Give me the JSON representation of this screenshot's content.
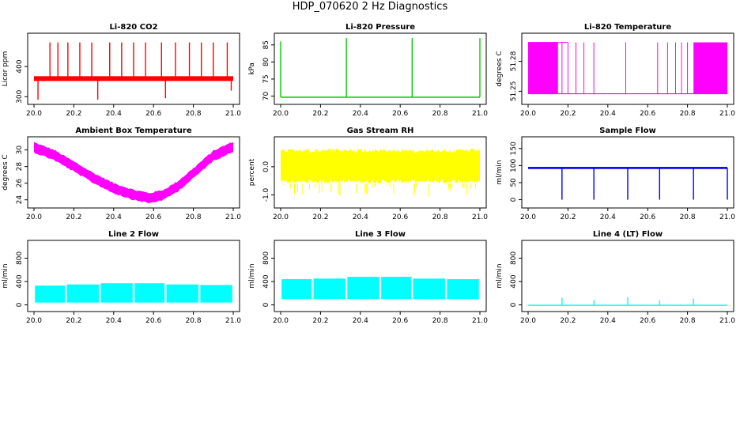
{
  "figure": {
    "title": "HDP_070620  2 Hz Diagnostics"
  },
  "chart_data": [
    {
      "id": "co2",
      "type": "line",
      "title": "Li-820 CO2",
      "ylabel": "Licor ppm",
      "xlim": [
        20.0,
        21.0
      ],
      "ylim": [
        285,
        500
      ],
      "xticks": [
        "20.0",
        "20.2",
        "20.4",
        "20.6",
        "20.8",
        "21.0"
      ],
      "yticks": [
        {
          "v": 300,
          "label": "300"
        },
        {
          "v": 400,
          "label": "400"
        }
      ],
      "color": "#ff0000",
      "signal": "spiky",
      "baseline": 360,
      "band": 8,
      "spikes": [
        {
          "x": 20.02,
          "y": 290
        },
        {
          "x": 20.08,
          "y": 480
        },
        {
          "x": 20.12,
          "y": 480
        },
        {
          "x": 20.17,
          "y": 480
        },
        {
          "x": 20.23,
          "y": 480
        },
        {
          "x": 20.29,
          "y": 480
        },
        {
          "x": 20.32,
          "y": 290
        },
        {
          "x": 20.38,
          "y": 480
        },
        {
          "x": 20.44,
          "y": 480
        },
        {
          "x": 20.5,
          "y": 480
        },
        {
          "x": 20.56,
          "y": 480
        },
        {
          "x": 20.64,
          "y": 480
        },
        {
          "x": 20.66,
          "y": 295
        },
        {
          "x": 20.71,
          "y": 480
        },
        {
          "x": 20.78,
          "y": 480
        },
        {
          "x": 20.84,
          "y": 480
        },
        {
          "x": 20.9,
          "y": 480
        },
        {
          "x": 20.97,
          "y": 480
        },
        {
          "x": 20.99,
          "y": 320
        }
      ]
    },
    {
      "id": "pressure",
      "type": "line",
      "title": "Li-820 Pressure",
      "ylabel": "kPa",
      "xlim": [
        20.0,
        21.0
      ],
      "ylim": [
        68.5,
        87.5
      ],
      "xticks": [
        "20.0",
        "20.2",
        "20.4",
        "20.6",
        "20.8",
        "21.0"
      ],
      "yticks": [
        {
          "v": 70,
          "label": "70"
        },
        {
          "v": 75,
          "label": "75"
        },
        {
          "v": 80,
          "label": "80"
        },
        {
          "v": 85,
          "label": "85"
        }
      ],
      "color": "#00cc00",
      "signal": "spiky",
      "baseline": 69.7,
      "band": 0.15,
      "spikes": [
        {
          "x": 20.0,
          "y": 86
        },
        {
          "x": 20.33,
          "y": 87
        },
        {
          "x": 20.66,
          "y": 87
        },
        {
          "x": 21.0,
          "y": 87
        }
      ]
    },
    {
      "id": "temperature",
      "type": "line",
      "title": "Li-820 Temperature",
      "ylabel": "degrees C",
      "xlim": [
        20.0,
        21.0
      ],
      "ylim": [
        51.24,
        51.305
      ],
      "xticks": [
        "20.0",
        "20.2",
        "20.4",
        "20.6",
        "20.8",
        "21.0"
      ],
      "yticks": [
        {
          "v": 51.25,
          "label": "51.25"
        },
        {
          "v": 51.28,
          "label": "51.28"
        }
      ],
      "color": "#ff00ff",
      "signal": "digital",
      "low": 51.2475,
      "high": 51.299,
      "dense": [
        [
          20.0,
          20.15
        ],
        [
          20.83,
          21.0
        ]
      ],
      "flicks": [
        20.17,
        20.2,
        20.24,
        20.28,
        20.33,
        20.49,
        20.65,
        20.7,
        20.74,
        20.77,
        20.8
      ]
    },
    {
      "id": "ambient",
      "type": "line",
      "title": "Ambient Box Temperature",
      "ylabel": "degrees C",
      "xlim": [
        20.0,
        21.0
      ],
      "ylim": [
        23.4,
        31.2
      ],
      "xticks": [
        "20.0",
        "20.2",
        "20.4",
        "20.6",
        "20.8",
        "21.0"
      ],
      "yticks": [
        {
          "v": 24,
          "label": "24"
        },
        {
          "v": 26,
          "label": "26"
        },
        {
          "v": 28,
          "label": "28"
        },
        {
          "v": 30,
          "label": "30"
        }
      ],
      "color": "#ff00ff",
      "signal": "band",
      "width": 1.0,
      "curve": [
        {
          "x": 20.0,
          "y": 30.3
        },
        {
          "x": 20.1,
          "y": 29.4
        },
        {
          "x": 20.2,
          "y": 28.0
        },
        {
          "x": 20.3,
          "y": 26.6
        },
        {
          "x": 20.4,
          "y": 25.4
        },
        {
          "x": 20.5,
          "y": 24.6
        },
        {
          "x": 20.58,
          "y": 24.2
        },
        {
          "x": 20.65,
          "y": 24.6
        },
        {
          "x": 20.72,
          "y": 25.6
        },
        {
          "x": 20.8,
          "y": 27.2
        },
        {
          "x": 20.9,
          "y": 29.3
        },
        {
          "x": 21.0,
          "y": 30.4
        }
      ]
    },
    {
      "id": "rh",
      "type": "line",
      "title": "Gas Stream RH",
      "ylabel": "percent",
      "xlim": [
        20.0,
        21.0
      ],
      "ylim": [
        -1.35,
        0.95
      ],
      "xticks": [
        "20.0",
        "20.2",
        "20.4",
        "20.6",
        "20.8",
        "21.0"
      ],
      "yticks": [
        {
          "v": -1,
          "label": "-1.0"
        },
        {
          "v": 0,
          "label": "0.0"
        }
      ],
      "color": "#ffff00",
      "signal": "noise",
      "min": -0.6,
      "max": 0.65,
      "dipTo": -1.1
    },
    {
      "id": "sample",
      "type": "line",
      "title": "Sample Flow",
      "ylabel": "ml/min",
      "xlim": [
        20.0,
        21.0
      ],
      "ylim": [
        -15,
        175
      ],
      "xticks": [
        "20.0",
        "20.2",
        "20.4",
        "20.6",
        "20.8",
        "21.0"
      ],
      "yticks": [
        {
          "v": 0,
          "label": "0"
        },
        {
          "v": 50,
          "label": "50"
        },
        {
          "v": 100,
          "label": "100"
        },
        {
          "v": 150,
          "label": "150"
        }
      ],
      "color": "#0000ee",
      "signal": "spiky",
      "baseline": 93,
      "band": 3,
      "spikes": [
        {
          "x": 20.17,
          "y": 0
        },
        {
          "x": 20.33,
          "y": 0
        },
        {
          "x": 20.5,
          "y": 0
        },
        {
          "x": 20.66,
          "y": 0
        },
        {
          "x": 20.83,
          "y": 0
        },
        {
          "x": 21.0,
          "y": 0
        }
      ]
    },
    {
      "id": "line2",
      "type": "line",
      "title": "Line 2 Flow",
      "ylabel": "ml/min",
      "xlim": [
        20.0,
        21.0
      ],
      "ylim": [
        -60,
        1050
      ],
      "xticks": [
        "20.0",
        "20.2",
        "20.4",
        "20.6",
        "20.8",
        "21.0"
      ],
      "yticks": [
        {
          "v": 0,
          "label": "0"
        },
        {
          "v": 400,
          "label": "400"
        },
        {
          "v": 800,
          "label": "800"
        }
      ],
      "color": "#00ffff",
      "signal": "blocks",
      "low": 40,
      "highs": [
        330,
        350,
        370,
        370,
        350,
        340
      ],
      "gaps": [
        20.16,
        20.33,
        20.5,
        20.66,
        20.83
      ]
    },
    {
      "id": "line3",
      "type": "line",
      "title": "Line 3 Flow",
      "ylabel": "ml/min",
      "xlim": [
        20.0,
        21.0
      ],
      "ylim": [
        -60,
        1050
      ],
      "xticks": [
        "20.0",
        "20.2",
        "20.4",
        "20.6",
        "20.8",
        "21.0"
      ],
      "yticks": [
        {
          "v": 0,
          "label": "0"
        },
        {
          "v": 400,
          "label": "400"
        },
        {
          "v": 800,
          "label": "800"
        }
      ],
      "color": "#00ffff",
      "signal": "blocks",
      "low": 100,
      "highs": [
        440,
        450,
        480,
        480,
        450,
        440
      ],
      "gaps": [
        20.16,
        20.33,
        20.5,
        20.66,
        20.83
      ]
    },
    {
      "id": "line4",
      "type": "line",
      "title": "Line 4 (LT) Flow",
      "ylabel": "ml/min",
      "xlim": [
        20.0,
        21.0
      ],
      "ylim": [
        -60,
        1050
      ],
      "xticks": [
        "20.0",
        "20.2",
        "20.4",
        "20.6",
        "20.8",
        "21.0"
      ],
      "yticks": [
        {
          "v": 0,
          "label": "0"
        },
        {
          "v": 400,
          "label": "400"
        },
        {
          "v": 800,
          "label": "800"
        }
      ],
      "color": "#00ffff",
      "signal": "spiky",
      "baseline": 0,
      "band": 3,
      "spikes": [
        {
          "x": 20.17,
          "y": 120
        },
        {
          "x": 20.33,
          "y": 80
        },
        {
          "x": 20.5,
          "y": 130
        },
        {
          "x": 20.66,
          "y": 80
        },
        {
          "x": 20.83,
          "y": 110
        }
      ]
    }
  ]
}
